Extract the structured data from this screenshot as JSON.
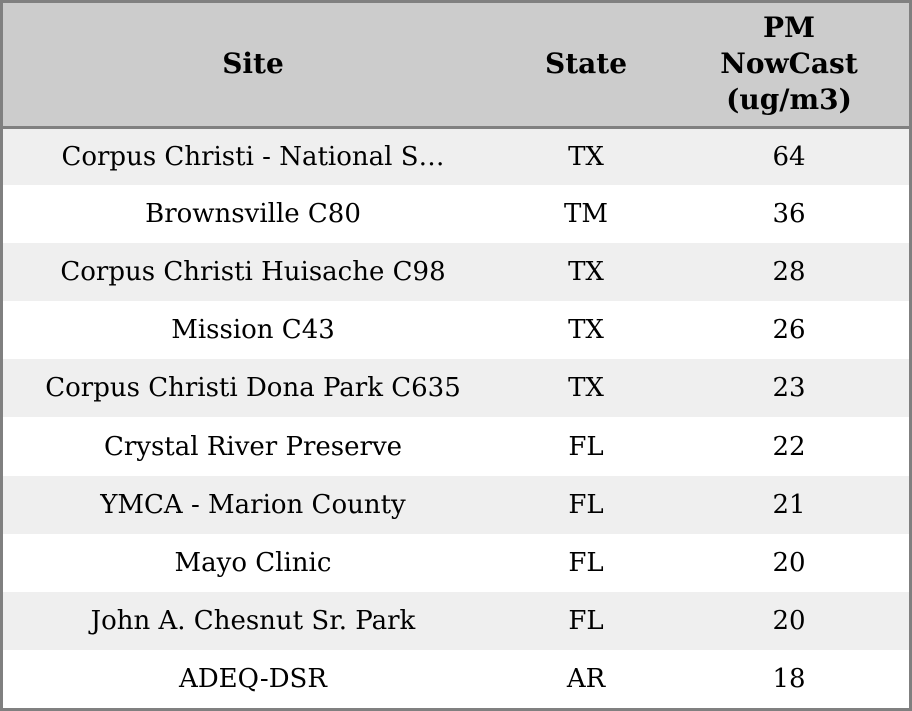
{
  "colors": {
    "border": "#808080",
    "header_bg": "#cccccc",
    "stripe_bg": "#efefef",
    "row_bg": "#ffffff",
    "text": "#000000"
  },
  "table": {
    "columns": [
      {
        "key": "site",
        "label": "Site"
      },
      {
        "key": "state",
        "label": "State"
      },
      {
        "key": "value",
        "label": "PM NowCast (ug/m3)"
      }
    ],
    "rows": [
      {
        "site": "Corpus Christi - National S…",
        "state": "TX",
        "value": "64"
      },
      {
        "site": "Brownsville C80",
        "state": "TM",
        "value": "36"
      },
      {
        "site": "Corpus Christi Huisache C98",
        "state": "TX",
        "value": "28"
      },
      {
        "site": "Mission C43",
        "state": "TX",
        "value": "26"
      },
      {
        "site": "Corpus Christi Dona Park C635",
        "state": "TX",
        "value": "23"
      },
      {
        "site": "Crystal River Preserve",
        "state": "FL",
        "value": "22"
      },
      {
        "site": "YMCA - Marion County",
        "state": "FL",
        "value": "21"
      },
      {
        "site": "Mayo Clinic",
        "state": "FL",
        "value": "20"
      },
      {
        "site": "John A. Chesnut Sr. Park",
        "state": "FL",
        "value": "20"
      },
      {
        "site": "ADEQ-DSR",
        "state": "AR",
        "value": "18"
      }
    ]
  }
}
